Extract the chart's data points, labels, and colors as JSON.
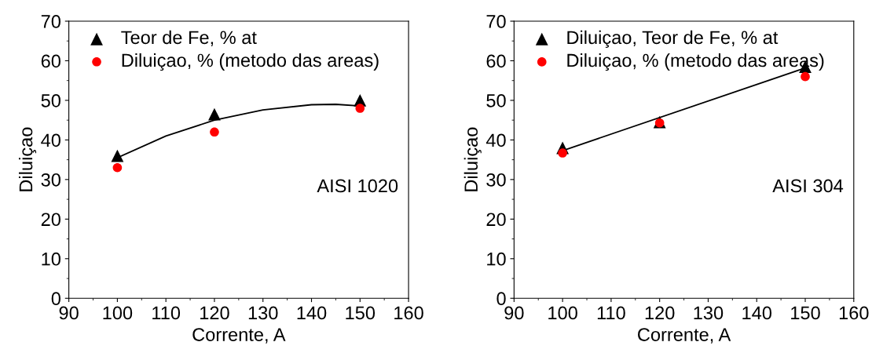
{
  "chart_data": [
    {
      "type": "scatter",
      "xlabel": "Corrente, A",
      "ylabel": "Diluiçao",
      "x": [
        100,
        120,
        150
      ],
      "xlim": [
        90,
        160
      ],
      "xticks": [
        90,
        100,
        110,
        120,
        130,
        140,
        150,
        160
      ],
      "ylim": [
        0,
        70
      ],
      "yticks": [
        0,
        10,
        20,
        30,
        40,
        50,
        60,
        70
      ],
      "legend": "top left",
      "grid": false,
      "annotations": [
        "AISI 1020"
      ],
      "series": [
        {
          "name": "Teor de Fe, % at",
          "color": "#000000",
          "marker": "triangle",
          "values": [
            36,
            46.5,
            50
          ]
        },
        {
          "name": "Diluiçao, % (metodo das areas)",
          "color": "#ff0000",
          "marker": "circle",
          "values": [
            33,
            42,
            48
          ]
        },
        {
          "type": "line",
          "color": "#000000",
          "marker": "none",
          "x": [
            100,
            110,
            120,
            130,
            140,
            145,
            150
          ],
          "values": [
            35.5,
            41,
            45,
            47.6,
            48.9,
            49,
            48.6
          ]
        }
      ]
    },
    {
      "type": "scatter",
      "xlabel": "Corrente, A",
      "ylabel": "Diluiçao",
      "x": [
        100,
        120,
        150
      ],
      "xlim": [
        90,
        160
      ],
      "xticks": [
        90,
        100,
        110,
        120,
        130,
        140,
        150,
        160
      ],
      "ylim": [
        0,
        70
      ],
      "yticks": [
        0,
        10,
        20,
        30,
        40,
        50,
        60,
        70
      ],
      "legend": "top left",
      "grid": false,
      "annotations": [
        "AISI 304"
      ],
      "series": [
        {
          "name": "Diluiçao, Teor de Fe, % at",
          "color": "#000000",
          "marker": "triangle",
          "values": [
            38,
            44.5,
            58.5
          ]
        },
        {
          "name": "Diluiçao, % (metodo das areas)",
          "color": "#ff0000",
          "marker": "circle",
          "values": [
            36.7,
            44.3,
            56
          ]
        },
        {
          "type": "line",
          "color": "#000000",
          "marker": "none",
          "x": [
            100,
            150
          ],
          "values": [
            37.3,
            58.2
          ]
        }
      ]
    }
  ]
}
